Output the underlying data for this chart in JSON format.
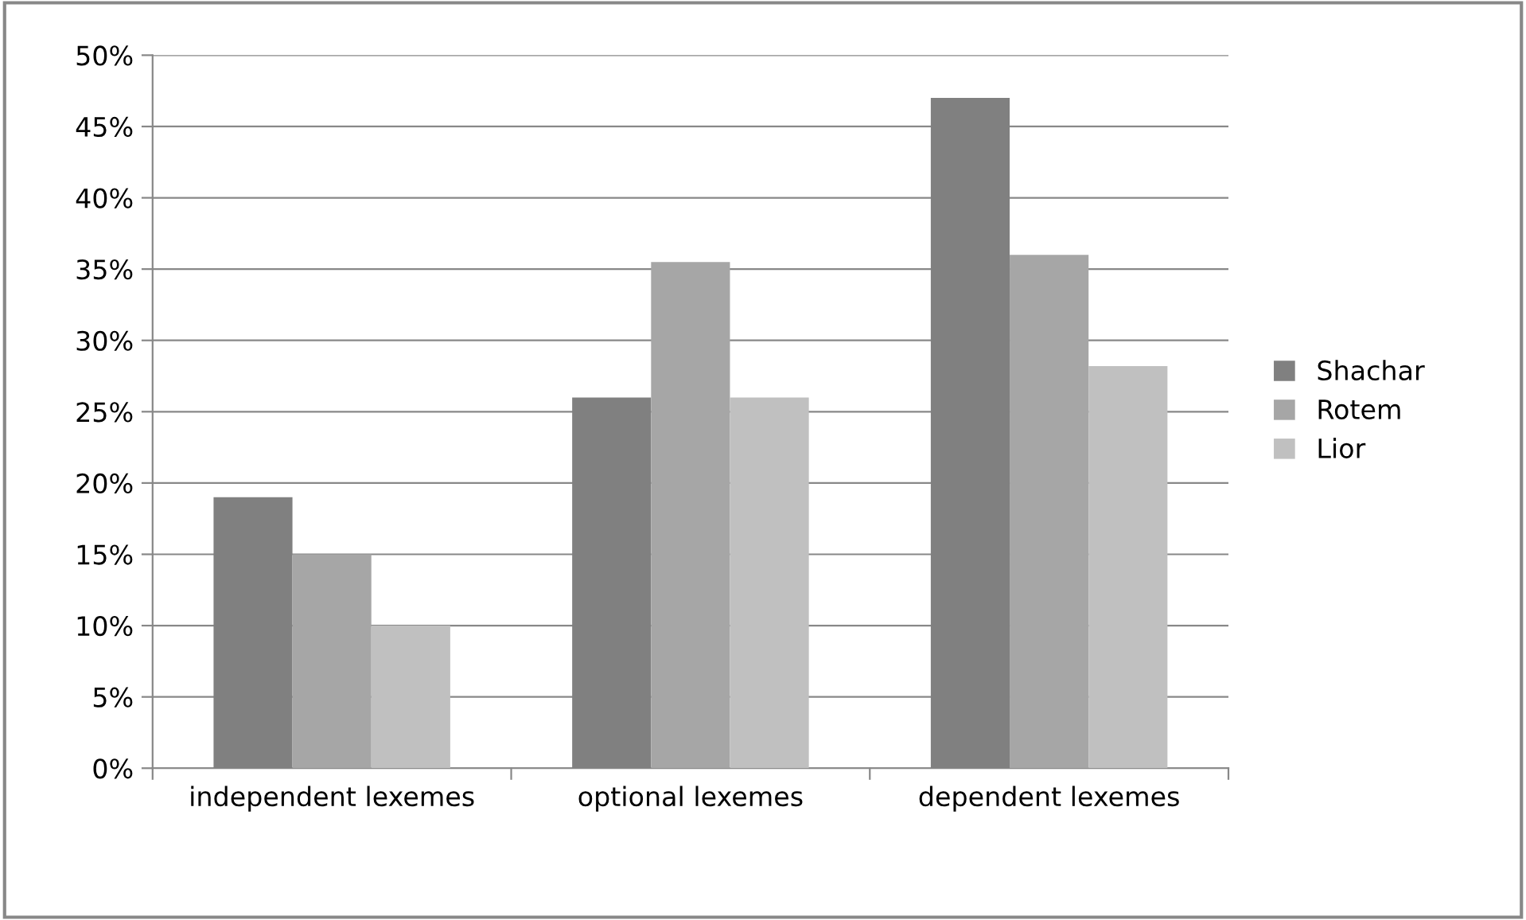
{
  "chart_data": {
    "type": "bar",
    "categories": [
      "independent lexemes",
      "optional lexemes",
      "dependent lexemes"
    ],
    "series": [
      {
        "name": "Shachar",
        "color": "#808080",
        "values": [
          19.0,
          26.0,
          47.0
        ]
      },
      {
        "name": "Rotem",
        "color": "#a6a6a6",
        "values": [
          15.0,
          35.5,
          36.0
        ]
      },
      {
        "name": "Lior",
        "color": "#c0c0c0",
        "values": [
          10.0,
          26.0,
          28.2
        ]
      }
    ],
    "ylim": [
      0,
      50
    ],
    "yticks": [
      {
        "value": 0,
        "label": "0%"
      },
      {
        "value": 5,
        "label": "5%"
      },
      {
        "value": 10,
        "label": "10%"
      },
      {
        "value": 15,
        "label": "15%"
      },
      {
        "value": 20,
        "label": "20%"
      },
      {
        "value": 25,
        "label": "25%"
      },
      {
        "value": 30,
        "label": "30%"
      },
      {
        "value": 35,
        "label": "35%"
      },
      {
        "value": 40,
        "label": "40%"
      },
      {
        "value": 45,
        "label": "45%"
      },
      {
        "value": 50,
        "label": "50%"
      }
    ],
    "grid": "y",
    "legend": "right"
  }
}
